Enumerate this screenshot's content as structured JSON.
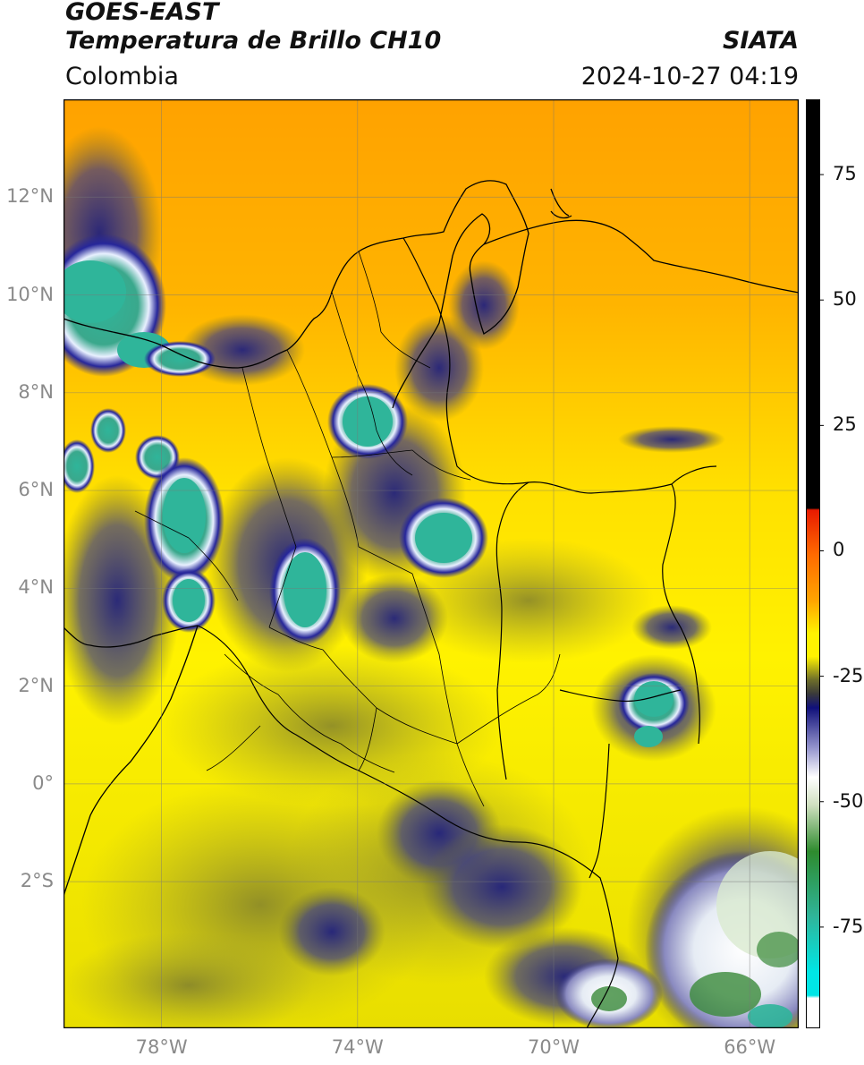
{
  "header": {
    "satellite": "GOES-EAST",
    "product": "Temperatura de Brillo CH10",
    "source": "SIATA",
    "region": "Colombia",
    "timestamp": "2024-10-27 04:19"
  },
  "map": {
    "lat_labels": [
      "12°N",
      "10°N",
      "8°N",
      "6°N",
      "4°N",
      "2°N",
      "0°",
      "2°S"
    ],
    "lon_labels": [
      "78°W",
      "74°W",
      "70°W",
      "66°W"
    ],
    "lon_range": [
      -80,
      -65
    ],
    "lat_range": [
      -5,
      14
    ],
    "gridlines": true
  },
  "colorbar": {
    "ticks": [
      "75",
      "50",
      "25",
      "0",
      "-25",
      "-50",
      "-75"
    ],
    "range": [
      -95,
      90
    ],
    "colors": {
      "black": "#000000",
      "red": "#e81a00",
      "orange": "#ffa500",
      "yellow": "#fff200",
      "olive": "#6e6e2a",
      "navy": "#1a1a80",
      "white": "#ffffff",
      "green": "#2e8b2e",
      "teal": "#2fb59a",
      "cyan": "#00e6e6"
    }
  }
}
